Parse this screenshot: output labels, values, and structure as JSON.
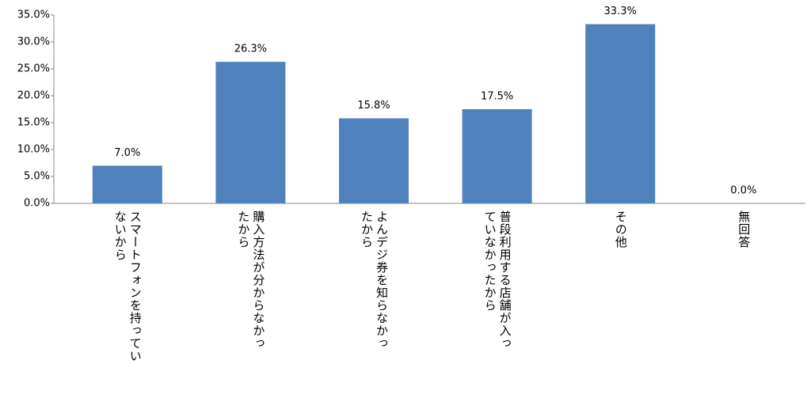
{
  "chart_data": {
    "type": "bar",
    "categories": [
      "スマートフォンを持ってい\nないから",
      "購入方法が分からなかっ\nたから",
      "よんデジ券を知らなかっ\nたから",
      "普段利用する店舗が入っ\nていなかったから",
      "その他",
      "無回答"
    ],
    "values": [
      7.0,
      26.3,
      15.8,
      17.5,
      33.3,
      0.0
    ],
    "value_labels": [
      "7.0%",
      "26.3%",
      "15.8%",
      "17.5%",
      "33.3%",
      "0.0%"
    ],
    "color": "#4f81bd",
    "ylim": [
      0,
      35
    ],
    "yticks": [
      {
        "value": 0,
        "label": "0.0%"
      },
      {
        "value": 5,
        "label": "5.0%"
      },
      {
        "value": 10,
        "label": "10.0%"
      },
      {
        "value": 15,
        "label": "15.0%"
      },
      {
        "value": 20,
        "label": "20.0%"
      },
      {
        "value": 25,
        "label": "25.0%"
      },
      {
        "value": 30,
        "label": "30.0%"
      },
      {
        "value": 35,
        "label": "35.0%"
      }
    ],
    "grid": false
  }
}
